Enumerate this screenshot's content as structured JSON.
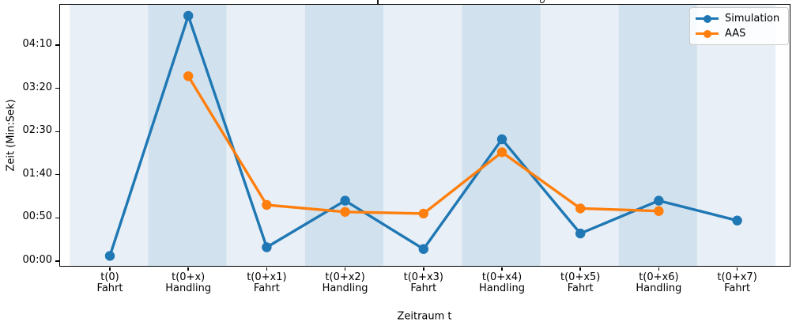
{
  "chart_data": {
    "type": "line",
    "title": "",
    "xlabel": "Zeitraum t",
    "ylabel": "Zeit (Min:Sek)",
    "categories": [
      {
        "tick": "t(0)",
        "phase": "Fahrt"
      },
      {
        "tick": "t(0+x)",
        "phase": "Handling"
      },
      {
        "tick": "t(0+x1)",
        "phase": "Fahrt"
      },
      {
        "tick": "t(0+x2)",
        "phase": "Handling"
      },
      {
        "tick": "t(0+x3)",
        "phase": "Fahrt"
      },
      {
        "tick": "t(0+x4)",
        "phase": "Handling"
      },
      {
        "tick": "t(0+x5)",
        "phase": "Fahrt"
      },
      {
        "tick": "t(0+x6)",
        "phase": "Handling"
      },
      {
        "tick": "t(0+x7)",
        "phase": "Fahrt"
      }
    ],
    "series": [
      {
        "name": "Simulation",
        "color": "#1f77b4",
        "values_seconds": [
          6,
          284,
          16,
          70,
          14,
          141,
          32,
          70,
          47
        ],
        "values_display": [
          "00:06",
          "04:44",
          "00:16",
          "01:10",
          "00:14",
          "02:21",
          "00:32",
          "01:10",
          "00:47"
        ]
      },
      {
        "name": "AAS",
        "color": "#ff7f0e",
        "values_seconds": [
          null,
          214,
          65,
          57,
          55,
          126,
          61,
          58,
          null
        ],
        "values_display": [
          null,
          "03:34",
          "01:05",
          "00:57",
          "00:55",
          "02:06",
          "01:01",
          "00:58",
          null
        ]
      }
    ],
    "y_ticks": [
      {
        "seconds": 0,
        "label": "00:00"
      },
      {
        "seconds": 50,
        "label": "00:50"
      },
      {
        "seconds": 100,
        "label": "01:40"
      },
      {
        "seconds": 150,
        "label": "02:30"
      },
      {
        "seconds": 200,
        "label": "03:20"
      },
      {
        "seconds": 250,
        "label": "04:10"
      }
    ],
    "ylim_seconds": [
      -6,
      298
    ],
    "grid": false,
    "legend_position": "upper right",
    "colors": {
      "band_light": "#e8eff6",
      "band_dark": "#d1e2ee",
      "spine": "#000000",
      "legend_border": "#cccccc"
    },
    "background_bands": "alternating light/dark column per category, light first"
  }
}
